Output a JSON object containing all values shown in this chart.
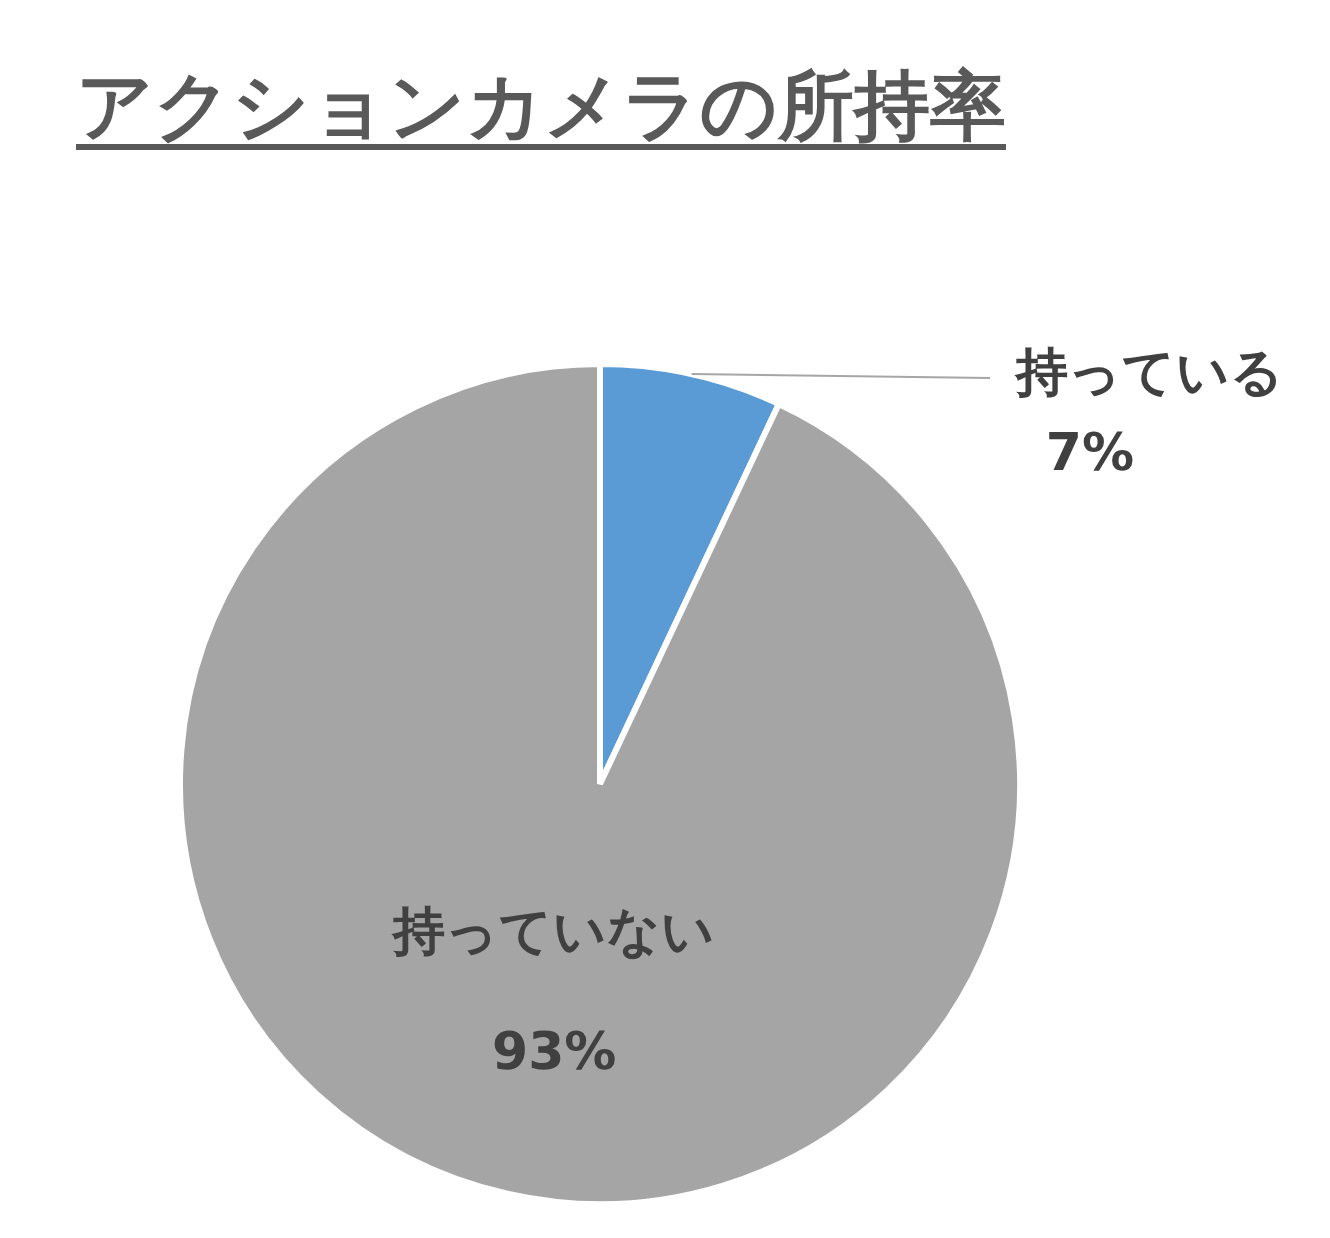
{
  "chart_data": {
    "type": "pie",
    "title": "アクションカメラの所持率",
    "categories": [
      "持っている",
      "持っていない"
    ],
    "values": [
      7,
      93
    ],
    "colors": [
      "#5b9bd5",
      "#a5a5a5"
    ],
    "value_labels": [
      "7%",
      "93%"
    ]
  }
}
